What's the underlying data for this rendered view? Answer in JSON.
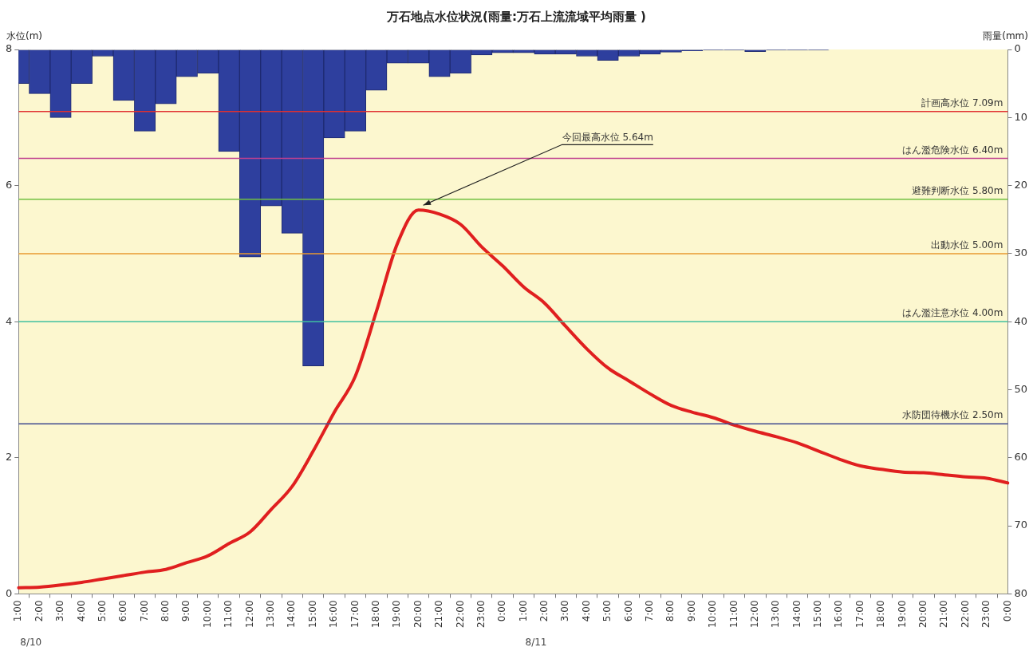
{
  "chart_data": {
    "type": "bar",
    "title": "万石地点水位状況(雨量:万石上流流域平均雨量 )",
    "ylabel": "水位(m)",
    "y2label": "雨量(mm)",
    "categories": [
      "1:00",
      "2:00",
      "3:00",
      "4:00",
      "5:00",
      "6:00",
      "7:00",
      "8:00",
      "9:00",
      "10:00",
      "11:00",
      "12:00",
      "13:00",
      "14:00",
      "15:00",
      "16:00",
      "17:00",
      "18:00",
      "19:00",
      "20:00",
      "21:00",
      "22:00",
      "23:00",
      "0:00",
      "1:00",
      "2:00",
      "3:00",
      "4:00",
      "5:00",
      "6:00",
      "7:00",
      "8:00",
      "9:00",
      "10:00",
      "11:00",
      "12:00",
      "13:00",
      "14:00",
      "15:00",
      "16:00",
      "17:00",
      "18:00",
      "19:00",
      "20:00",
      "21:00",
      "22:00",
      "23:00",
      "0:00"
    ],
    "ylim": [
      0,
      8
    ],
    "yticks": [
      0,
      2,
      4,
      6,
      8
    ],
    "y2lim": [
      80,
      0
    ],
    "y2ticks": [
      0,
      10,
      20,
      30,
      40,
      50,
      60,
      70,
      80
    ],
    "series": [
      {
        "axis": "y2",
        "color": "#2e3f9e",
        "values": [
          5,
          6.5,
          10,
          5,
          1,
          7.5,
          12,
          8,
          4,
          3.5,
          15,
          30.5,
          23,
          27,
          46.5,
          13,
          12,
          6,
          2,
          2,
          4,
          3.5,
          0.8,
          0.5,
          0.5,
          0.7,
          0.7,
          1,
          1.6,
          1,
          0.7,
          0.4,
          0.2,
          0.1,
          0.1,
          0.3,
          0.1,
          0.1,
          0.1,
          0,
          0,
          0,
          0,
          0,
          0,
          0,
          0,
          0
        ]
      },
      {
        "type": "line",
        "color": "#e01f1f",
        "values": [
          0.09,
          0.1,
          0.13,
          0.17,
          0.22,
          0.27,
          0.32,
          0.36,
          0.46,
          0.56,
          0.74,
          0.91,
          1.24,
          1.58,
          2.1,
          2.67,
          3.2,
          4.15,
          5.15,
          5.64,
          5.58,
          5.43,
          5.1,
          4.82,
          4.51,
          4.27,
          3.93,
          3.6,
          3.32,
          3.13,
          2.94,
          2.77,
          2.67,
          2.59,
          2.48,
          2.39,
          2.31,
          2.22,
          2.1,
          1.98,
          1.88,
          1.83,
          1.79,
          1.78,
          1.75,
          1.72,
          1.7,
          1.63
        ]
      }
    ],
    "ref_lines": [
      {
        "axis": "y",
        "value": 7.09,
        "label": "計画高水位 7.09m",
        "color": "#e03030"
      },
      {
        "axis": "y",
        "value": 6.4,
        "label": "はん濫危険水位 6.40m",
        "color": "#c04090"
      },
      {
        "axis": "y",
        "value": 5.8,
        "label": "避難判断水位 5.80m",
        "color": "#70c040"
      },
      {
        "axis": "y",
        "value": 5,
        "label": "出動水位 5.00m",
        "color": "#e89a30"
      },
      {
        "axis": "y",
        "value": 4,
        "label": "はん濫注意水位 4.00m",
        "color": "#40c0a0"
      },
      {
        "axis": "y",
        "value": 2.5,
        "label": "水防団待機水位 2.50m",
        "color": "#404a90"
      }
    ],
    "annotations": [
      "今回最高水位 5.64m",
      "8/10",
      "8/11"
    ]
  }
}
